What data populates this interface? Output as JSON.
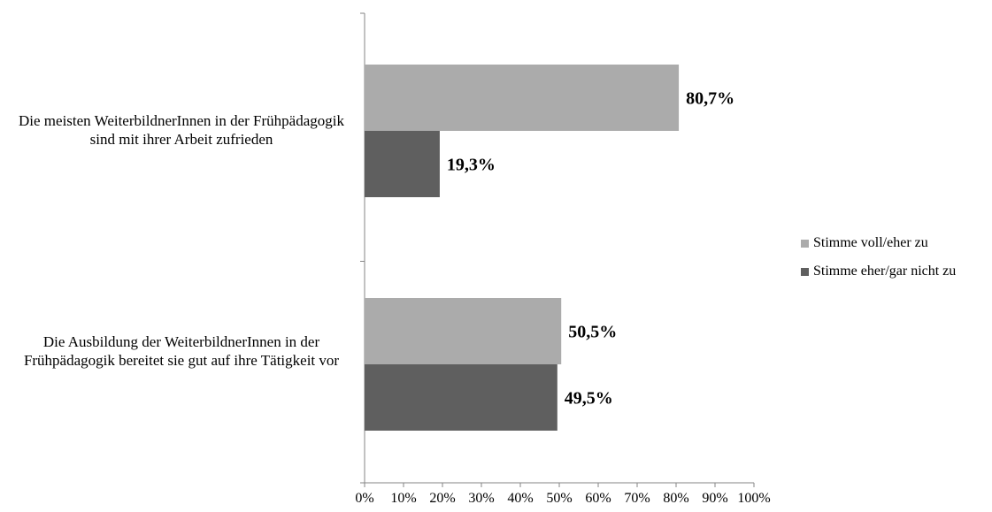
{
  "chart_data": {
    "type": "bar",
    "orientation": "horizontal",
    "categories": [
      "Die meisten WeiterbildnerInnen in der Frühpädagogik sind mit ihrer Arbeit zufrieden",
      "Die Ausbildung der WeiterbildnerInnen in der Frühpädagogik bereitet sie gut auf ihre Tätigkeit vor"
    ],
    "series": [
      {
        "name": "Stimme voll/eher zu",
        "values": [
          80.7,
          50.5
        ],
        "labels": [
          "80,7%",
          "50,5%"
        ],
        "color": "#ababab"
      },
      {
        "name": "Stimme eher/gar nicht zu",
        "values": [
          19.3,
          49.5
        ],
        "labels": [
          "19,3%",
          "49,5%"
        ],
        "color": "#5f5f5f"
      }
    ],
    "xlim": [
      0,
      100
    ],
    "xticks": [
      "0%",
      "10%",
      "20%",
      "30%",
      "40%",
      "50%",
      "60%",
      "70%",
      "80%",
      "90%",
      "100%"
    ],
    "grid": false,
    "legend_position": "right"
  }
}
